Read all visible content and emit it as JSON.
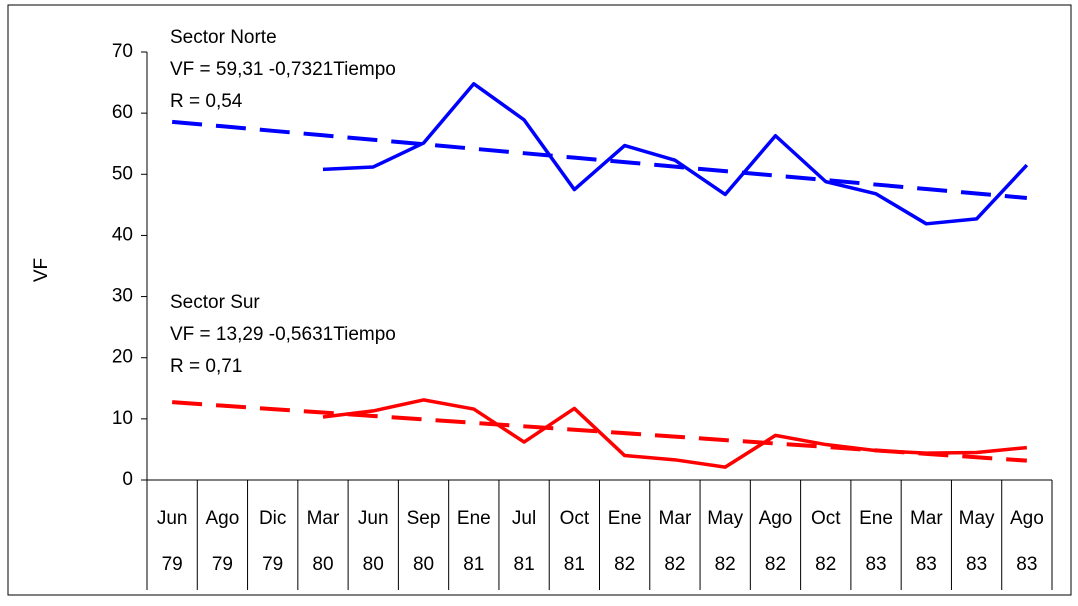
{
  "chart_data": {
    "type": "line",
    "y_label": "VF",
    "categories": [
      {
        "month": "Jun",
        "year": "79"
      },
      {
        "month": "Ago",
        "year": "79"
      },
      {
        "month": "Dic",
        "year": "79"
      },
      {
        "month": "Mar",
        "year": "80"
      },
      {
        "month": "Jun",
        "year": "80"
      },
      {
        "month": "Sep",
        "year": "80"
      },
      {
        "month": "Ene",
        "year": "81"
      },
      {
        "month": "Jul",
        "year": "81"
      },
      {
        "month": "Oct",
        "year": "81"
      },
      {
        "month": "Ene",
        "year": "82"
      },
      {
        "month": "Mar",
        "year": "82"
      },
      {
        "month": "May",
        "year": "82"
      },
      {
        "month": "Ago",
        "year": "82"
      },
      {
        "month": "Oct",
        "year": "82"
      },
      {
        "month": "Ene",
        "year": "83"
      },
      {
        "month": "Mar",
        "year": "83"
      },
      {
        "month": "May",
        "year": "83"
      },
      {
        "month": "Ago",
        "year": "83"
      }
    ],
    "series": [
      {
        "color": "#0000ff",
        "dashed": false,
        "values": [
          null,
          null,
          null,
          50.8,
          51.2,
          55.1,
          64.8,
          58.9,
          47.5,
          54.7,
          52.3,
          46.7,
          56.3,
          48.8,
          46.8,
          41.9,
          42.7,
          51.5
        ]
      },
      {
        "color": "#0000ff",
        "dashed": true,
        "values": [
          58.58,
          57.85,
          57.11,
          56.38,
          55.65,
          54.92,
          54.18,
          53.45,
          52.72,
          51.99,
          51.25,
          50.52,
          49.79,
          49.06,
          48.32,
          47.59,
          46.86,
          46.13
        ]
      },
      {
        "color": "#ff0000",
        "dashed": false,
        "values": [
          null,
          null,
          null,
          10.3,
          11.3,
          13.1,
          11.6,
          6.2,
          11.7,
          4.0,
          3.3,
          2.1,
          7.3,
          5.8,
          4.8,
          4.4,
          4.5,
          5.3
        ]
      },
      {
        "color": "#ff0000",
        "dashed": true,
        "values": [
          12.73,
          12.16,
          11.6,
          11.04,
          10.47,
          9.91,
          9.35,
          8.78,
          8.22,
          7.66,
          7.1,
          6.53,
          5.97,
          5.41,
          4.84,
          4.28,
          3.72,
          3.16
        ]
      }
    ],
    "annotations": [
      {
        "lines": [
          "Sector Norte",
          "VF = 59,31 -0,7321Tiempo",
          "R = 0,54"
        ]
      },
      {
        "lines": [
          "Sector Sur",
          "VF = 13,29 -0,5631Tiempo",
          "R = 0,71"
        ]
      }
    ],
    "ylim": [
      0,
      70
    ],
    "yticks": [
      0,
      10,
      20,
      30,
      40,
      50,
      60,
      70
    ],
    "grid": false
  }
}
